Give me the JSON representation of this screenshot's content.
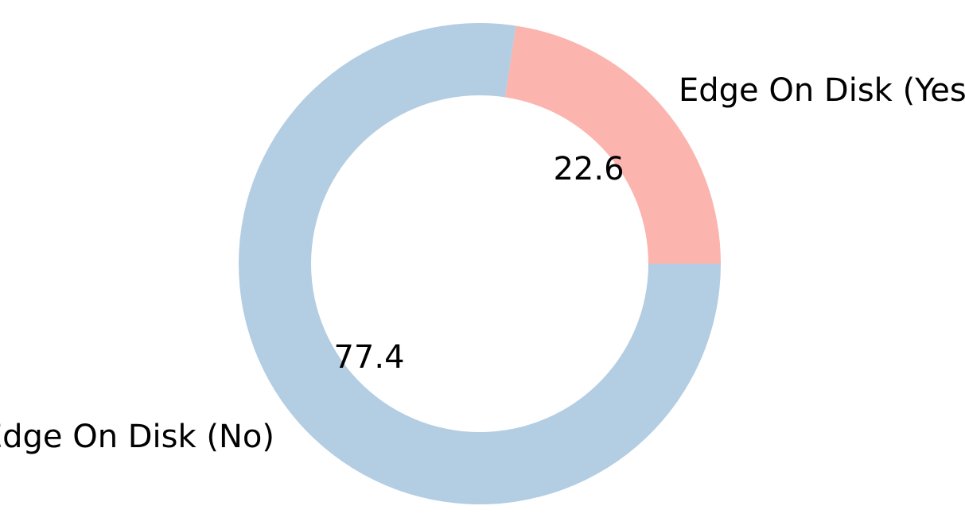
{
  "chart_data": {
    "type": "pie",
    "variant": "donut",
    "start_angle_deg": 0,
    "direction": "counterclockwise",
    "slices": [
      {
        "label": "Edge On Disk (Yes)",
        "value": 22.6,
        "value_label": "22.6",
        "color": "#fbb4ae"
      },
      {
        "label": "Edge On Disk (No)",
        "value": 77.4,
        "value_label": "77.4",
        "color": "#b3cde3"
      }
    ]
  }
}
